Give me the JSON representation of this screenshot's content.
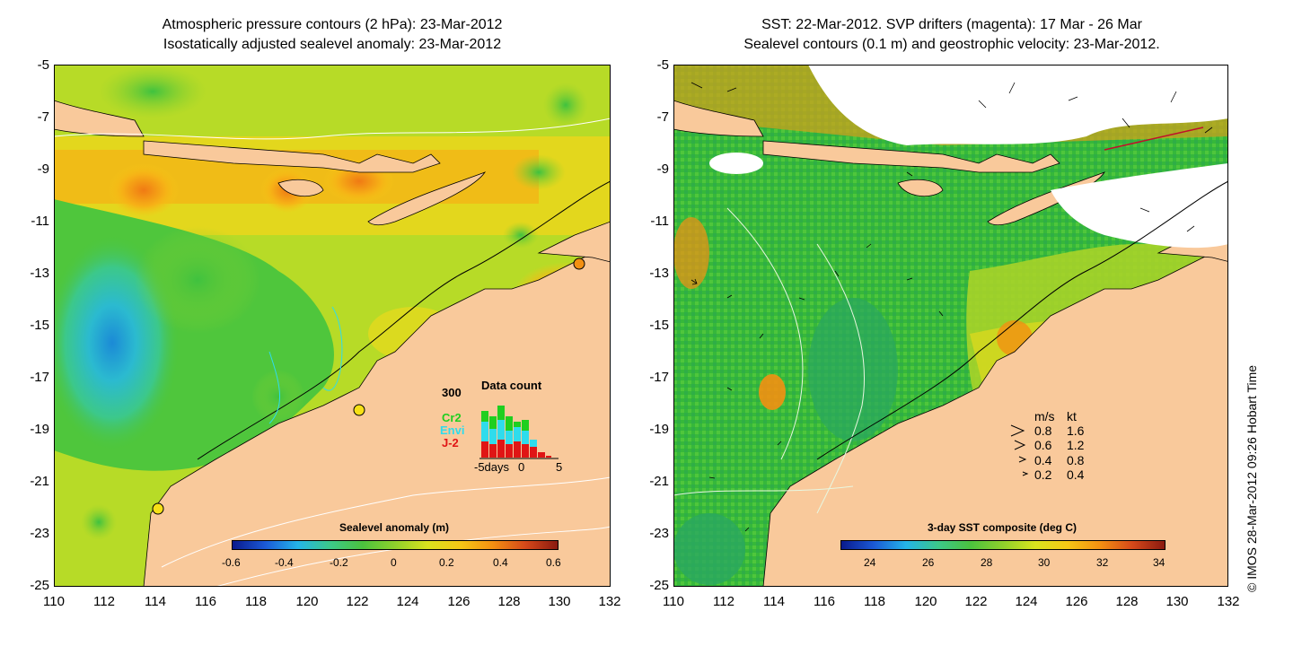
{
  "left_panel": {
    "title_line1": "Atmospheric pressure contours (2 hPa): 23-Mar-2012",
    "title_line2": "Isostatically adjusted sealevel anomaly: 23-Mar-2012",
    "y_ticks": [
      "-5",
      "-7",
      "-9",
      "-11",
      "-13",
      "-15",
      "-17",
      "-19",
      "-21",
      "-23",
      "-25"
    ],
    "x_ticks": [
      "110",
      "112",
      "114",
      "116",
      "118",
      "120",
      "122",
      "124",
      "126",
      "128",
      "130",
      "132"
    ],
    "colorbar": {
      "title": "Sealevel anomaly (m)",
      "ticks": [
        "-0.6",
        "-0.4",
        "-0.2",
        "0",
        "0.2",
        "0.4",
        "0.6"
      ],
      "palette": [
        "#0a1a8c",
        "#1b59d6",
        "#24b4e8",
        "#3cc88a",
        "#4bc33e",
        "#8fd12c",
        "#d9e21e",
        "#f6c716",
        "#f39012",
        "#d6491a",
        "#8a1a10"
      ]
    },
    "data_count": {
      "title": "Data count",
      "y_label": "300",
      "x_labels": [
        "-5days",
        "0",
        "5"
      ],
      "sources": [
        {
          "name": "Cr2",
          "color": "#1fcf1f"
        },
        {
          "name": "Envi",
          "color": "#2fdcec"
        },
        {
          "name": "J-2",
          "color": "#e01515"
        }
      ]
    }
  },
  "right_panel": {
    "title_line1": "SST: 22-Mar-2012. SVP drifters (magenta): 17 Mar - 26 Mar",
    "title_line2": "Sealevel contours (0.1 m) and geostrophic velocity: 23-Mar-2012.",
    "y_ticks": [
      "-5",
      "-7",
      "-9",
      "-11",
      "-13",
      "-15",
      "-17",
      "-19",
      "-21",
      "-23",
      "-25"
    ],
    "x_ticks": [
      "110",
      "112",
      "114",
      "116",
      "118",
      "120",
      "122",
      "124",
      "126",
      "128",
      "130",
      "132"
    ],
    "colorbar": {
      "title": "3-day SST composite (deg C)",
      "ticks": [
        "24",
        "26",
        "28",
        "30",
        "32",
        "34"
      ],
      "palette": [
        "#0a1a8c",
        "#1b59d6",
        "#24b4e8",
        "#3cc88a",
        "#4bc33e",
        "#8fd12c",
        "#d9e21e",
        "#f6c716",
        "#f39012",
        "#d6491a",
        "#8a1a10"
      ]
    },
    "speed_legend": {
      "header_ms": "m/s",
      "header_kt": "kt",
      "rows": [
        {
          "ms": "0.8",
          "kt": "1.6"
        },
        {
          "ms": "0.6",
          "kt": "1.2"
        },
        {
          "ms": "0.4",
          "kt": "0.8"
        },
        {
          "ms": "0.2",
          "kt": "0.4"
        }
      ]
    }
  },
  "copyright": "© IMOS 28-Mar-2012 09:26 Hobart Time",
  "colors": {
    "land": "#f9c99b",
    "cloud": "#ffffff"
  }
}
